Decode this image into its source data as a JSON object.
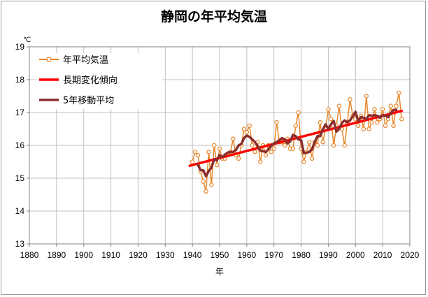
{
  "chart_data": {
    "type": "line",
    "title": "静岡の年平均気温",
    "xlabel": "年",
    "ylabel_unit": "℃",
    "xlim": [
      1880,
      2020
    ],
    "ylim": [
      13,
      19
    ],
    "xticks": [
      "1880",
      "1890",
      "1900",
      "1910",
      "1920",
      "1930",
      "1940",
      "1950",
      "1960",
      "1970",
      "1980",
      "1990",
      "2000",
      "2010",
      "2020"
    ],
    "yticks": [
      "13",
      "14",
      "15",
      "16",
      "17",
      "18",
      "19"
    ],
    "grid": true,
    "legend_position": "top-left",
    "colors": {
      "annual": "#E8872A",
      "trend": "#FF0000",
      "moving_avg": "#8B2E2E",
      "grid": "#c0c0c0",
      "axis": "#808080"
    },
    "series": [
      {
        "name": "年平均気温",
        "style": "line-marker",
        "x": [
          1940,
          1941,
          1942,
          1943,
          1944,
          1945,
          1946,
          1947,
          1948,
          1949,
          1950,
          1951,
          1952,
          1953,
          1954,
          1955,
          1956,
          1957,
          1958,
          1959,
          1960,
          1961,
          1962,
          1963,
          1964,
          1965,
          1966,
          1967,
          1968,
          1969,
          1970,
          1971,
          1972,
          1973,
          1974,
          1975,
          1976,
          1977,
          1978,
          1979,
          1980,
          1981,
          1982,
          1983,
          1984,
          1985,
          1986,
          1987,
          1988,
          1989,
          1990,
          1991,
          1992,
          1993,
          1994,
          1995,
          1996,
          1997,
          1998,
          1999,
          2000,
          2001,
          2002,
          2003,
          2004,
          2005,
          2006,
          2007,
          2008,
          2009,
          2010,
          2011,
          2012,
          2013,
          2014,
          2015,
          2016,
          2017
        ],
        "values": [
          15.5,
          15.8,
          15.7,
          15.2,
          14.9,
          14.6,
          15.8,
          14.8,
          16.0,
          15.4,
          15.9,
          15.6,
          15.6,
          15.7,
          15.8,
          16.2,
          15.7,
          15.6,
          16.0,
          16.5,
          16.4,
          16.6,
          16.0,
          15.8,
          16.1,
          15.5,
          16.0,
          15.7,
          16.0,
          15.8,
          15.9,
          16.7,
          16.1,
          16.1,
          16.0,
          16.2,
          15.9,
          15.9,
          16.6,
          17.0,
          15.9,
          15.5,
          15.8,
          16.1,
          15.6,
          16.1,
          16.0,
          16.7,
          16.1,
          16.5,
          17.1,
          16.8,
          16.0,
          16.6,
          17.2,
          16.5,
          16.0,
          16.7,
          17.4,
          16.9,
          16.8,
          16.6,
          16.9,
          16.5,
          17.5,
          16.5,
          16.7,
          17.1,
          16.7,
          16.8,
          17.1,
          16.6,
          16.8,
          17.2,
          16.6,
          17.2,
          17.6,
          16.8
        ]
      },
      {
        "name": "長期変化傾向",
        "style": "line",
        "x": [
          1939,
          2017
        ],
        "values": [
          15.38,
          17.05
        ]
      },
      {
        "name": "5年移動平均",
        "style": "line",
        "x": [
          1942,
          1943,
          1944,
          1945,
          1946,
          1947,
          1948,
          1949,
          1950,
          1951,
          1952,
          1953,
          1954,
          1955,
          1956,
          1957,
          1958,
          1959,
          1960,
          1961,
          1962,
          1963,
          1964,
          1965,
          1966,
          1967,
          1968,
          1969,
          1970,
          1971,
          1972,
          1973,
          1974,
          1975,
          1976,
          1977,
          1978,
          1979,
          1980,
          1981,
          1982,
          1983,
          1984,
          1985,
          1986,
          1987,
          1988,
          1989,
          1990,
          1991,
          1992,
          1993,
          1994,
          1995,
          1996,
          1997,
          1998,
          1999,
          2000,
          2001,
          2002,
          2003,
          2004,
          2005,
          2006,
          2007,
          2008,
          2009,
          2010,
          2011,
          2012,
          2013,
          2014,
          2015
        ],
        "values": [
          15.42,
          15.24,
          15.24,
          15.06,
          15.22,
          15.32,
          15.58,
          15.54,
          15.7,
          15.64,
          15.72,
          15.78,
          15.8,
          15.8,
          15.86,
          16.0,
          16.04,
          16.22,
          16.3,
          16.26,
          16.18,
          16.1,
          15.98,
          15.84,
          15.82,
          15.8,
          15.88,
          15.98,
          16.06,
          16.1,
          16.16,
          16.22,
          16.18,
          16.06,
          16.12,
          16.32,
          16.28,
          16.18,
          16.16,
          15.76,
          15.78,
          15.8,
          15.88,
          16.1,
          16.28,
          16.28,
          16.48,
          16.64,
          16.5,
          16.64,
          16.74,
          16.42,
          16.5,
          16.68,
          16.76,
          16.7,
          16.76,
          16.88,
          17.02,
          16.74,
          16.86,
          16.84,
          16.8,
          16.92,
          16.9,
          16.92,
          16.9,
          16.84,
          16.92,
          16.9,
          16.86,
          16.98,
          17.08,
          17.08
        ]
      }
    ]
  }
}
